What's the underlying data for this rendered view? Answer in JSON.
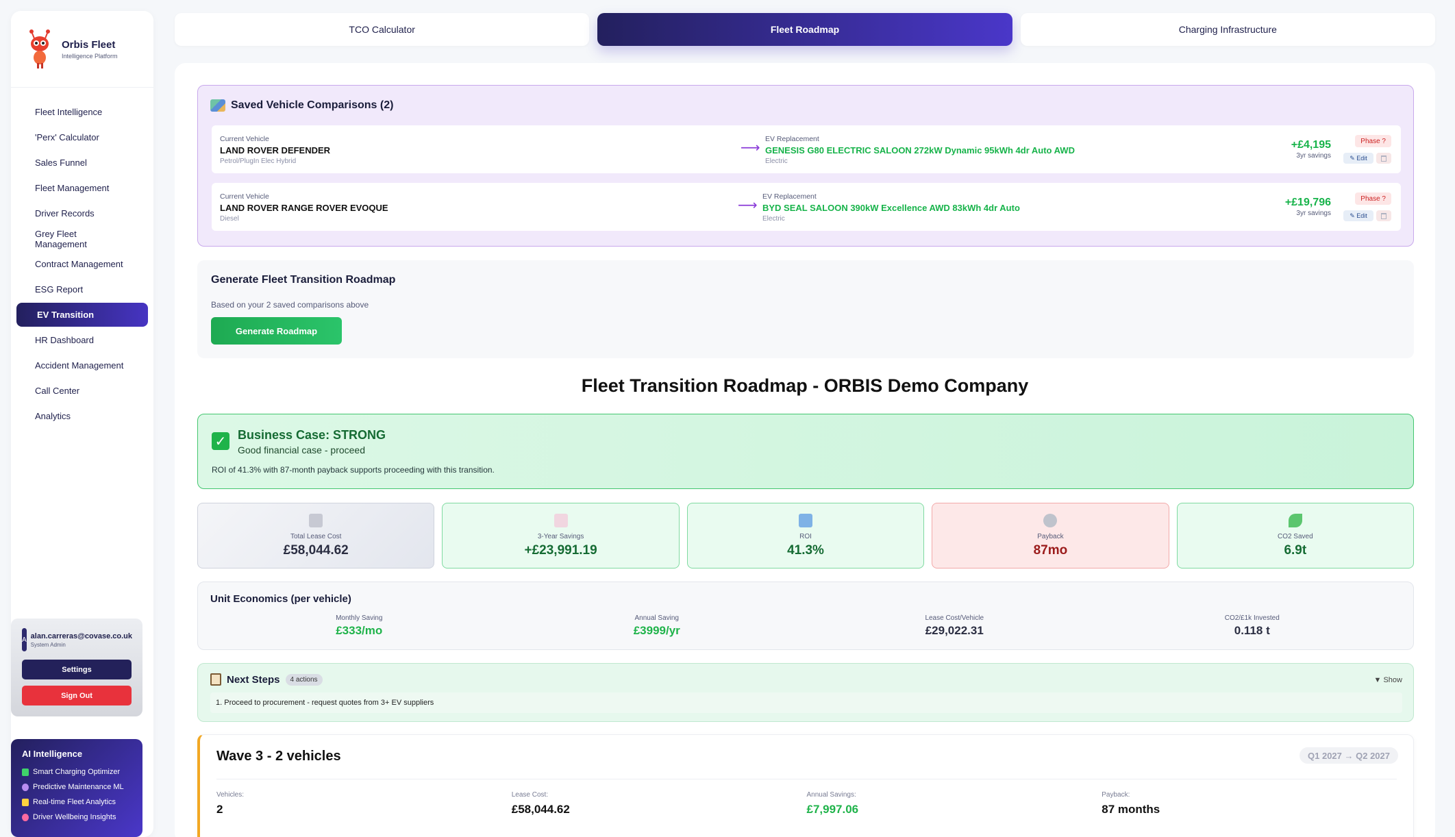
{
  "brand": {
    "name": "Orbis Fleet",
    "subtitle": "Intelligence Platform"
  },
  "sidebar": {
    "items": [
      {
        "label": "Fleet Intelligence"
      },
      {
        "label": "'Perx' Calculator"
      },
      {
        "label": "Sales Funnel"
      },
      {
        "label": "Fleet Management"
      },
      {
        "label": "Driver Records"
      },
      {
        "label": "Grey Fleet Management"
      },
      {
        "label": "Contract Management"
      },
      {
        "label": "ESG Report"
      },
      {
        "label": "EV Transition"
      },
      {
        "label": "HR Dashboard"
      },
      {
        "label": "Accident Management"
      },
      {
        "label": "Call Center"
      },
      {
        "label": "Analytics"
      }
    ],
    "active_index": 8
  },
  "user": {
    "initial": "A",
    "email": "alan.carreras@covase.co.uk",
    "role": "System Admin",
    "settings_label": "Settings",
    "signout_label": "Sign Out"
  },
  "ai": {
    "title": "AI Intelligence",
    "items": [
      {
        "label": "Smart Charging Optimizer",
        "icon": "battery-icon",
        "color": "#3fd26a"
      },
      {
        "label": "Predictive Maintenance ML",
        "icon": "crystal-ball-icon",
        "color": "#b98cf0"
      },
      {
        "label": "Real-time Fleet Analytics",
        "icon": "lightning-icon",
        "color": "#ffd23f"
      },
      {
        "label": "Driver Wellbeing Insights",
        "icon": "heart-icon",
        "color": "#ff6aa0"
      }
    ]
  },
  "tabs": [
    {
      "label": "TCO Calculator"
    },
    {
      "label": "Fleet Roadmap"
    },
    {
      "label": "Charging Infrastructure"
    }
  ],
  "saved": {
    "title": "Saved Vehicle Comparisons (2)",
    "current_label": "Current Vehicle",
    "ev_label": "EV Replacement",
    "savings_label": "3yr savings",
    "phase_label": "Phase ?",
    "edit_label": "✎ Edit",
    "rows": [
      {
        "current": "LAND ROVER DEFENDER",
        "current_fuel": "Petrol/PlugIn Elec Hybrid",
        "ev": "GENESIS G80 ELECTRIC SALOON 272kW Dynamic 95kWh 4dr Auto AWD",
        "ev_fuel": "Electric",
        "saving": "+£4,195"
      },
      {
        "current": "LAND ROVER RANGE ROVER EVOQUE",
        "current_fuel": "Diesel",
        "ev": "BYD SEAL SALOON 390kW Excellence AWD 83kWh 4dr Auto",
        "ev_fuel": "Electric",
        "saving": "+£19,796"
      }
    ]
  },
  "generate": {
    "title": "Generate Fleet Transition Roadmap",
    "subtitle": "Based on your 2 saved comparisons above",
    "button": "Generate Roadmap"
  },
  "roadmap_title": "Fleet Transition Roadmap - ORBIS Demo Company",
  "business_case": {
    "title": "Business Case: STRONG",
    "subtitle": "Good financial case - proceed",
    "description": "ROI of 41.3% with 87-month payback supports proceeding with this transition."
  },
  "metrics": [
    {
      "label": "Total Lease Cost",
      "value": "£58,044.62",
      "icon": "calculator-icon"
    },
    {
      "label": "3-Year Savings",
      "value": "+£23,991.19",
      "icon": "chart-up-icon"
    },
    {
      "label": "ROI",
      "value": "41.3%",
      "icon": "bar-chart-icon"
    },
    {
      "label": "Payback",
      "value": "87mo",
      "icon": "stopwatch-icon"
    },
    {
      "label": "CO2 Saved",
      "value": "6.9t",
      "icon": "seedling-icon"
    }
  ],
  "unit_economics": {
    "title": "Unit Economics (per vehicle)",
    "cells": [
      {
        "label": "Monthly Saving",
        "value": "£333/mo"
      },
      {
        "label": "Annual Saving",
        "value": "£3999/yr"
      },
      {
        "label": "Lease Cost/Vehicle",
        "value": "£29,022.31"
      },
      {
        "label": "CO2/£1k Invested",
        "value": "0.118 t"
      }
    ]
  },
  "next_steps": {
    "title": "Next Steps",
    "badge": "4 actions",
    "toggle": "▼ Show",
    "first_step": "1. Proceed to procurement - request quotes from 3+ EV suppliers"
  },
  "wave": {
    "title": "Wave 3 - 2 vehicles",
    "dates": "Q1 2027 → Q2 2027",
    "cells": [
      {
        "label": "Vehicles:",
        "value": "2"
      },
      {
        "label": "Lease Cost:",
        "value": "£58,044.62"
      },
      {
        "label": "Annual Savings:",
        "value": "£7,997.06"
      },
      {
        "label": "Payback:",
        "value": "87 months"
      }
    ]
  }
}
